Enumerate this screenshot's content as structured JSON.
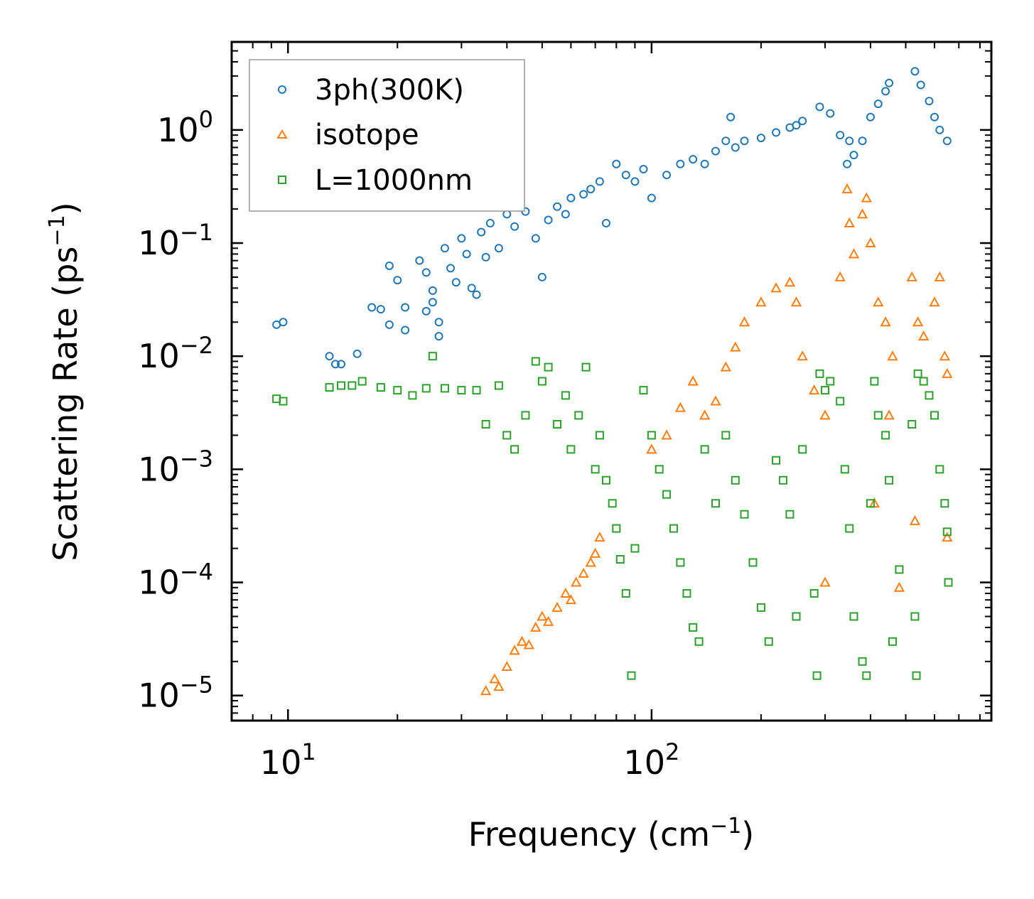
{
  "chart_data": {
    "type": "scatter",
    "xscale": "log",
    "yscale": "log",
    "xlabel": "Frequency (cm",
    "xlabel_sup": "−1",
    "xlabel_end": ")",
    "ylabel": "Scattering Rate (ps",
    "ylabel_sup": "−1",
    "ylabel_end": ")",
    "xlim": [
      7.0,
      860
    ],
    "ylim": [
      6e-06,
      6.0
    ],
    "xticks": [
      {
        "value": 10,
        "base": "10",
        "exp": "1"
      },
      {
        "value": 100,
        "base": "10",
        "exp": "2"
      }
    ],
    "yticks": [
      {
        "value": 1,
        "base": "10",
        "exp": "0"
      },
      {
        "value": 0.1,
        "base": "10",
        "exp": "−1"
      },
      {
        "value": 0.01,
        "base": "10",
        "exp": "−2"
      },
      {
        "value": 0.001,
        "base": "10",
        "exp": "−3"
      },
      {
        "value": 0.0001,
        "base": "10",
        "exp": "−4"
      },
      {
        "value": 1e-05,
        "base": "10",
        "exp": "−5"
      }
    ],
    "legend_position": "top-left",
    "series": [
      {
        "name": "3ph(300K)",
        "marker": "circle",
        "color": "#1f77b4",
        "points": [
          [
            9.3,
            0.019
          ],
          [
            9.7,
            0.02
          ],
          [
            13,
            0.01
          ],
          [
            13.5,
            0.0085
          ],
          [
            14,
            0.0085
          ],
          [
            15.5,
            0.0105
          ],
          [
            17,
            0.027
          ],
          [
            18,
            0.026
          ],
          [
            19,
            0.063
          ],
          [
            19,
            0.019
          ],
          [
            20,
            0.047
          ],
          [
            21,
            0.017
          ],
          [
            21,
            0.027
          ],
          [
            23,
            0.07
          ],
          [
            24,
            0.055
          ],
          [
            24,
            0.025
          ],
          [
            25,
            0.038
          ],
          [
            25,
            0.03
          ],
          [
            26,
            0.02
          ],
          [
            26,
            0.015
          ],
          [
            27,
            0.09
          ],
          [
            28,
            0.06
          ],
          [
            29,
            0.045
          ],
          [
            30,
            0.11
          ],
          [
            31,
            0.08
          ],
          [
            32,
            0.04
          ],
          [
            33,
            0.035
          ],
          [
            34,
            0.125
          ],
          [
            35,
            0.075
          ],
          [
            36,
            0.15
          ],
          [
            38,
            0.09
          ],
          [
            40,
            0.18
          ],
          [
            42,
            0.14
          ],
          [
            45,
            0.19
          ],
          [
            48,
            0.11
          ],
          [
            50,
            0.05
          ],
          [
            52,
            0.16
          ],
          [
            55,
            0.21
          ],
          [
            58,
            0.18
          ],
          [
            60,
            0.25
          ],
          [
            65,
            0.27
          ],
          [
            68,
            0.3
          ],
          [
            72,
            0.35
          ],
          [
            75,
            0.15
          ],
          [
            80,
            0.5
          ],
          [
            85,
            0.4
          ],
          [
            90,
            0.35
          ],
          [
            95,
            0.45
          ],
          [
            100,
            0.25
          ],
          [
            110,
            0.4
          ],
          [
            120,
            0.5
          ],
          [
            130,
            0.55
          ],
          [
            140,
            0.5
          ],
          [
            150,
            0.65
          ],
          [
            160,
            0.8
          ],
          [
            165,
            1.3
          ],
          [
            170,
            0.7
          ],
          [
            180,
            0.8
          ],
          [
            200,
            0.85
          ],
          [
            220,
            0.95
          ],
          [
            240,
            1.05
          ],
          [
            250,
            1.1
          ],
          [
            260,
            1.2
          ],
          [
            290,
            1.6
          ],
          [
            310,
            1.4
          ],
          [
            330,
            0.9
          ],
          [
            345,
            0.5
          ],
          [
            350,
            0.8
          ],
          [
            360,
            0.6
          ],
          [
            380,
            0.8
          ],
          [
            400,
            1.3
          ],
          [
            420,
            1.7
          ],
          [
            440,
            2.2
          ],
          [
            450,
            2.6
          ],
          [
            530,
            3.3
          ],
          [
            550,
            2.5
          ],
          [
            580,
            1.8
          ],
          [
            600,
            1.3
          ],
          [
            620,
            1.0
          ],
          [
            650,
            0.8
          ]
        ]
      },
      {
        "name": "isotope",
        "marker": "triangle",
        "color": "#ff7f0e",
        "points": [
          [
            35,
            1.1e-05
          ],
          [
            37,
            1.4e-05
          ],
          [
            38,
            1.2e-05
          ],
          [
            40,
            1.8e-05
          ],
          [
            42,
            2.5e-05
          ],
          [
            44,
            3e-05
          ],
          [
            46,
            2.8e-05
          ],
          [
            48,
            4e-05
          ],
          [
            50,
            5e-05
          ],
          [
            52,
            4.5e-05
          ],
          [
            55,
            6e-05
          ],
          [
            58,
            8e-05
          ],
          [
            60,
            7e-05
          ],
          [
            62,
            0.0001
          ],
          [
            65,
            0.00012
          ],
          [
            68,
            0.00015
          ],
          [
            70,
            0.00018
          ],
          [
            72,
            0.00025
          ],
          [
            100,
            0.0015
          ],
          [
            110,
            0.002
          ],
          [
            120,
            0.0035
          ],
          [
            130,
            0.006
          ],
          [
            140,
            0.003
          ],
          [
            150,
            0.004
          ],
          [
            160,
            0.008
          ],
          [
            170,
            0.012
          ],
          [
            180,
            0.02
          ],
          [
            200,
            0.03
          ],
          [
            220,
            0.04
          ],
          [
            240,
            0.045
          ],
          [
            250,
            0.03
          ],
          [
            260,
            0.01
          ],
          [
            280,
            0.005
          ],
          [
            300,
            0.003
          ],
          [
            330,
            0.05
          ],
          [
            345,
            0.3
          ],
          [
            350,
            0.15
          ],
          [
            360,
            0.08
          ],
          [
            380,
            0.18
          ],
          [
            390,
            0.25
          ],
          [
            400,
            0.1
          ],
          [
            420,
            0.03
          ],
          [
            440,
            0.02
          ],
          [
            460,
            0.01
          ],
          [
            520,
            0.05
          ],
          [
            540,
            0.02
          ],
          [
            560,
            0.015
          ],
          [
            600,
            0.03
          ],
          [
            620,
            0.05
          ],
          [
            640,
            0.01
          ],
          [
            650,
            0.007
          ],
          [
            410,
            0.0005
          ],
          [
            450,
            0.003
          ],
          [
            480,
            9e-05
          ],
          [
            530,
            0.00035
          ],
          [
            650,
            0.00025
          ],
          [
            300,
            0.0001
          ]
        ]
      },
      {
        "name": "L=1000nm",
        "marker": "square",
        "color": "#2ca02c",
        "points": [
          [
            9.3,
            0.0042
          ],
          [
            9.7,
            0.004
          ],
          [
            13,
            0.0053
          ],
          [
            14,
            0.0055
          ],
          [
            15,
            0.0055
          ],
          [
            16,
            0.006
          ],
          [
            18,
            0.0053
          ],
          [
            20,
            0.005
          ],
          [
            22,
            0.0045
          ],
          [
            24,
            0.0052
          ],
          [
            25,
            0.01
          ],
          [
            27,
            0.0052
          ],
          [
            30,
            0.005
          ],
          [
            33,
            0.005
          ],
          [
            35,
            0.0025
          ],
          [
            38,
            0.0055
          ],
          [
            40,
            0.002
          ],
          [
            42,
            0.0015
          ],
          [
            45,
            0.003
          ],
          [
            48,
            0.009
          ],
          [
            50,
            0.006
          ],
          [
            52,
            0.008
          ],
          [
            55,
            0.0025
          ],
          [
            58,
            0.0045
          ],
          [
            60,
            0.0015
          ],
          [
            63,
            0.003
          ],
          [
            66,
            0.008
          ],
          [
            70,
            0.001
          ],
          [
            72,
            0.002
          ],
          [
            75,
            0.0008
          ],
          [
            78,
            0.0005
          ],
          [
            80,
            0.0003
          ],
          [
            82,
            0.00016
          ],
          [
            85,
            8e-05
          ],
          [
            88,
            1.5e-05
          ],
          [
            90,
            0.0002
          ],
          [
            95,
            0.005
          ],
          [
            100,
            0.002
          ],
          [
            105,
            0.001
          ],
          [
            110,
            0.0006
          ],
          [
            115,
            0.0003
          ],
          [
            120,
            0.00015
          ],
          [
            125,
            8e-05
          ],
          [
            130,
            4e-05
          ],
          [
            135,
            3e-05
          ],
          [
            140,
            0.0015
          ],
          [
            150,
            0.0005
          ],
          [
            160,
            0.002
          ],
          [
            170,
            0.0008
          ],
          [
            180,
            0.0004
          ],
          [
            190,
            0.00015
          ],
          [
            200,
            6e-05
          ],
          [
            210,
            3e-05
          ],
          [
            220,
            0.0012
          ],
          [
            230,
            0.0008
          ],
          [
            240,
            0.0004
          ],
          [
            250,
            5e-05
          ],
          [
            260,
            0.0015
          ],
          [
            280,
            8e-05
          ],
          [
            285,
            1.5e-05
          ],
          [
            290,
            0.007
          ],
          [
            300,
            0.005
          ],
          [
            310,
            0.006
          ],
          [
            330,
            0.004
          ],
          [
            340,
            0.001
          ],
          [
            350,
            0.0003
          ],
          [
            360,
            5e-05
          ],
          [
            380,
            2e-05
          ],
          [
            390,
            1.5e-05
          ],
          [
            400,
            0.0005
          ],
          [
            410,
            0.006
          ],
          [
            420,
            0.003
          ],
          [
            440,
            0.002
          ],
          [
            450,
            0.0008
          ],
          [
            460,
            3e-05
          ],
          [
            480,
            0.00013
          ],
          [
            520,
            0.0025
          ],
          [
            530,
            5e-05
          ],
          [
            535,
            1.5e-05
          ],
          [
            540,
            0.007
          ],
          [
            560,
            0.006
          ],
          [
            580,
            0.0045
          ],
          [
            600,
            0.003
          ],
          [
            620,
            0.001
          ],
          [
            640,
            0.0005
          ],
          [
            650,
            0.00028
          ],
          [
            655,
            0.0001
          ]
        ]
      }
    ]
  }
}
